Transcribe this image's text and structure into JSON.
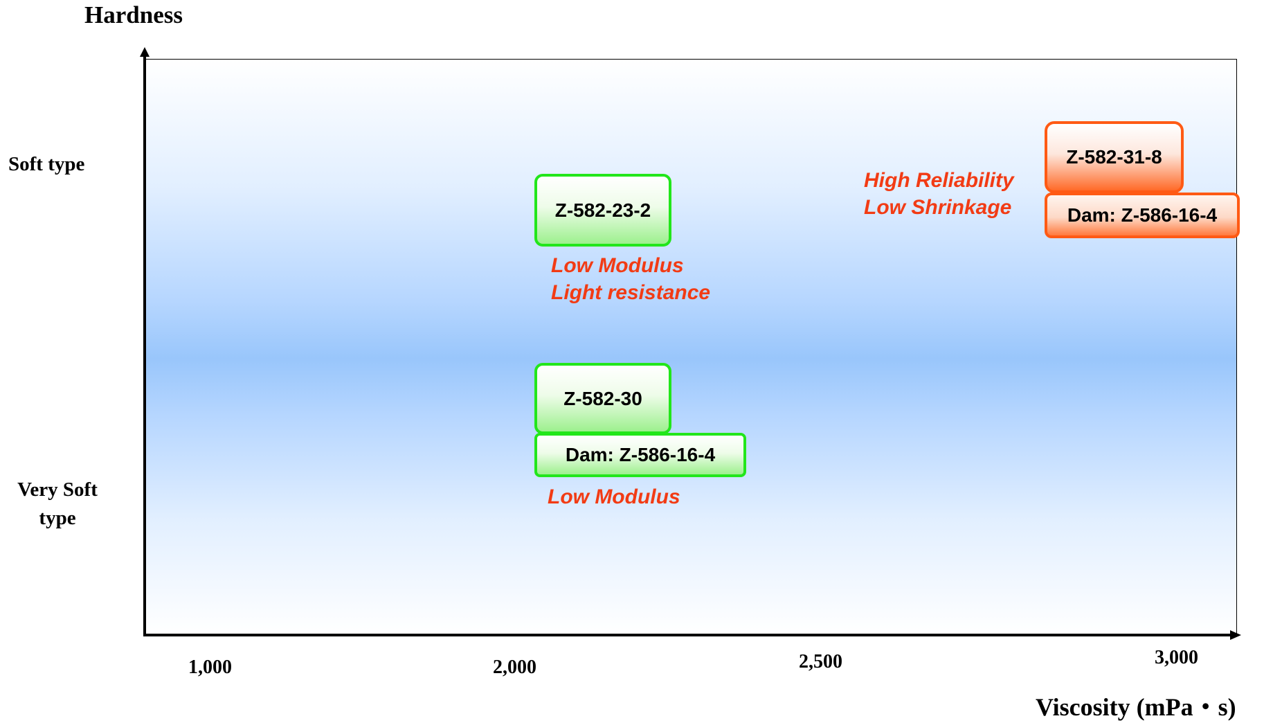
{
  "chart_data": {
    "type": "scatter",
    "y_title": "Hardness",
    "x_title": "Viscosity (mPa・s)",
    "y_categories": [
      "Soft type",
      "Very Soft type"
    ],
    "x_ticks": [
      "1,000",
      "2,000",
      "2,500",
      "3,000"
    ],
    "points": [
      {
        "product": "Z-582-23-2",
        "viscosity": 2150,
        "hardness": "Soft type",
        "color": "#22e61b",
        "notes": [
          "Low Modulus",
          "Light resistance"
        ]
      },
      {
        "product": "Z-582-30",
        "dam": "Dam: Z-586-16-4",
        "viscosity": 2150,
        "hardness": "Very Soft type",
        "color": "#22e61b",
        "notes": [
          "Low Modulus"
        ]
      },
      {
        "product": "Z-582-31-8",
        "dam": "Dam: Z-586-16-4",
        "viscosity": 2950,
        "hardness": "Soft type",
        "color": "#ff5a14",
        "notes": [
          "High Reliability",
          "Low Shrinkage"
        ]
      }
    ],
    "grid": false,
    "background": "vertical gradient white-blue-white"
  },
  "labels": {
    "y_cat_soft": "Soft type",
    "y_cat_verysoft_line1": "Very Soft",
    "y_cat_verysoft_line2": "type"
  }
}
